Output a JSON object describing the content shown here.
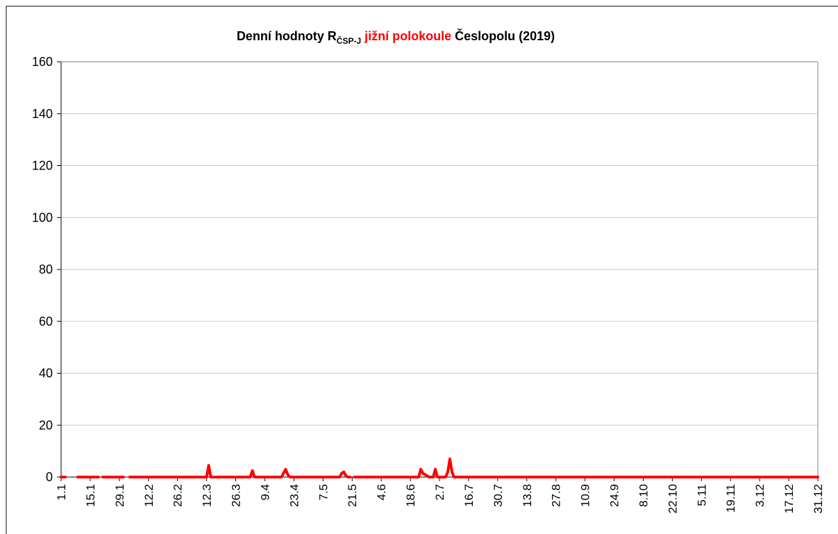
{
  "chart_data": {
    "type": "line",
    "title": {
      "main": "Denní hodnoty R",
      "subscript": "ČSP-J",
      "highlight": "jižní polokoule",
      "rest": "Česlopolu (2019)"
    },
    "categories": [
      "1.1",
      null,
      null,
      null,
      null,
      null,
      null,
      null,
      null,
      null,
      null,
      null,
      null,
      null,
      "15.1",
      null,
      null,
      null,
      null,
      null,
      null,
      null,
      null,
      null,
      null,
      null,
      null,
      null,
      "29.1",
      null,
      null,
      null,
      null,
      null,
      null,
      null,
      null,
      null,
      null,
      null,
      null,
      null,
      "12.2",
      null,
      null,
      null,
      null,
      null,
      null,
      null,
      null,
      null,
      null,
      null,
      null,
      null,
      "26.2",
      null,
      null,
      null,
      null,
      null,
      null,
      null,
      null,
      null,
      null,
      null,
      null,
      null,
      "12.3",
      null,
      null,
      null,
      null,
      null,
      null,
      null,
      null,
      null,
      null,
      null,
      null,
      null,
      "26.3",
      null,
      null,
      null,
      null,
      null,
      null,
      null,
      null,
      null,
      null,
      null,
      null,
      null,
      "9.4",
      null,
      null,
      null,
      null,
      null,
      null,
      null,
      null,
      null,
      null,
      null,
      null,
      null,
      "23.4",
      null,
      null,
      null,
      null,
      null,
      null,
      null,
      null,
      null,
      null,
      null,
      null,
      null,
      "7.5",
      null,
      null,
      null,
      null,
      null,
      null,
      null,
      null,
      null,
      null,
      null,
      null,
      null,
      "21.5",
      null,
      null,
      null,
      null,
      null,
      null,
      null,
      null,
      null,
      null,
      null,
      null,
      null,
      "4.6",
      null,
      null,
      null,
      null,
      null,
      null,
      null,
      null,
      null,
      null,
      null,
      null,
      null,
      "18.6",
      null,
      null,
      null,
      null,
      null,
      null,
      null,
      null,
      null,
      null,
      null,
      null,
      null,
      "2.7",
      null,
      null,
      null,
      null,
      null,
      null,
      null,
      null,
      null,
      null,
      null,
      null,
      null,
      "16.7",
      null,
      null,
      null,
      null,
      null,
      null,
      null,
      null,
      null,
      null,
      null,
      null,
      null,
      "30.7",
      null,
      null,
      null,
      null,
      null,
      null,
      null,
      null,
      null,
      null,
      null,
      null,
      null,
      "13.8",
      null,
      null,
      null,
      null,
      null,
      null,
      null,
      null,
      null,
      null,
      null,
      null,
      null,
      "27.8",
      null,
      null,
      null,
      null,
      null,
      null,
      null,
      null,
      null,
      null,
      null,
      null,
      null,
      "10.9",
      null,
      null,
      null,
      null,
      null,
      null,
      null,
      null,
      null,
      null,
      null,
      null,
      null,
      "24.9",
      null,
      null,
      null,
      null,
      null,
      null,
      null,
      null,
      null,
      null,
      null,
      null,
      null,
      "8.10",
      null,
      null,
      null,
      null,
      null,
      null,
      null,
      null,
      null,
      null,
      null,
      null,
      null,
      "22.10",
      null,
      null,
      null,
      null,
      null,
      null,
      null,
      null,
      null,
      null,
      null,
      null,
      null,
      "5.11",
      null,
      null,
      null,
      null,
      null,
      null,
      null,
      null,
      null,
      null,
      null,
      null,
      null,
      "19.11",
      null,
      null,
      null,
      null,
      null,
      null,
      null,
      null,
      null,
      null,
      null,
      null,
      null,
      "3.12",
      null,
      null,
      null,
      null,
      null,
      null,
      null,
      null,
      null,
      null,
      null,
      null,
      null,
      "17.12",
      null,
      null,
      null,
      null,
      null,
      null,
      null,
      null,
      null,
      null,
      null,
      null,
      null,
      "31.12"
    ],
    "values": [
      0,
      0,
      0,
      null,
      null,
      0,
      null,
      null,
      0,
      0,
      0,
      0,
      0,
      0,
      0,
      0,
      0,
      0,
      0,
      null,
      0,
      0,
      0,
      0,
      0,
      0,
      0,
      0,
      0,
      0,
      0,
      null,
      null,
      0,
      0,
      0,
      0,
      0,
      0,
      0,
      0,
      0,
      0,
      0,
      0,
      0,
      0,
      0,
      0,
      0,
      0,
      0,
      0,
      0,
      0,
      0,
      0,
      0,
      0,
      0,
      0,
      0,
      0,
      0,
      0,
      0,
      0,
      0,
      0,
      0,
      0,
      4.5,
      0,
      0,
      0,
      0,
      0,
      0,
      0,
      0,
      0,
      0,
      0,
      0,
      0,
      0,
      0,
      0,
      0,
      0,
      0,
      0,
      2.5,
      0,
      0,
      0,
      0,
      0,
      0,
      0,
      0,
      0,
      0,
      0,
      0,
      0,
      0,
      1.5,
      3,
      1,
      0,
      0,
      0,
      0,
      0,
      0,
      0,
      0,
      0,
      0,
      0,
      0,
      0,
      0,
      0,
      0,
      0,
      0,
      0,
      0,
      0,
      0,
      0,
      0,
      0,
      1.5,
      2,
      0.5,
      0,
      0,
      null,
      0,
      0,
      0,
      0,
      0,
      0,
      0,
      0,
      0,
      0,
      0,
      0,
      0,
      0,
      0,
      0,
      0,
      0,
      0,
      0,
      0,
      0,
      0,
      0,
      0,
      0,
      0,
      0,
      0,
      0,
      0,
      0,
      3,
      1.5,
      1,
      0.5,
      0,
      0,
      0,
      3,
      0,
      0,
      0,
      0,
      0,
      2,
      7,
      2,
      0,
      0,
      0,
      0,
      0,
      0,
      0,
      0,
      0,
      0,
      0,
      0,
      0,
      0,
      0,
      0,
      0,
      0,
      0,
      0,
      0,
      0,
      0,
      0,
      0,
      0,
      0,
      0,
      0,
      0,
      0,
      0,
      0,
      0,
      0,
      0,
      0,
      0,
      0,
      0,
      0,
      0,
      0,
      0,
      0,
      0,
      0,
      0,
      0,
      0,
      0,
      0,
      0,
      0,
      0,
      0,
      0,
      0,
      0,
      0,
      0,
      0,
      0,
      0,
      0,
      0,
      0,
      0,
      0,
      0,
      0,
      0,
      0,
      0,
      0,
      0,
      0,
      0,
      0,
      0,
      0,
      0,
      0,
      0,
      0,
      0,
      0,
      0,
      0,
      0,
      0,
      0,
      0,
      0,
      0,
      0,
      0,
      0,
      0,
      0,
      0,
      0,
      0,
      0,
      0,
      0,
      0,
      0,
      0,
      0,
      0,
      0,
      0,
      0,
      0,
      0,
      0,
      0,
      0,
      0,
      0,
      0,
      0,
      0,
      0,
      0,
      0,
      0,
      0,
      0,
      0,
      0,
      0,
      0,
      0,
      0,
      0,
      0,
      0,
      0,
      0,
      0,
      0,
      0,
      0,
      0,
      0,
      0,
      0,
      0,
      0,
      0,
      0,
      0,
      0,
      0,
      0,
      0,
      0,
      0,
      0,
      0,
      0,
      0,
      0,
      0,
      0,
      0,
      0,
      0,
      0,
      0,
      0,
      0,
      0,
      0
    ],
    "color": "#ff0000",
    "highlight_color": "#ff0000",
    "ylim": [
      0,
      160
    ],
    "yticks": [
      0,
      20,
      40,
      60,
      80,
      100,
      120,
      140,
      160
    ],
    "grid": true
  }
}
